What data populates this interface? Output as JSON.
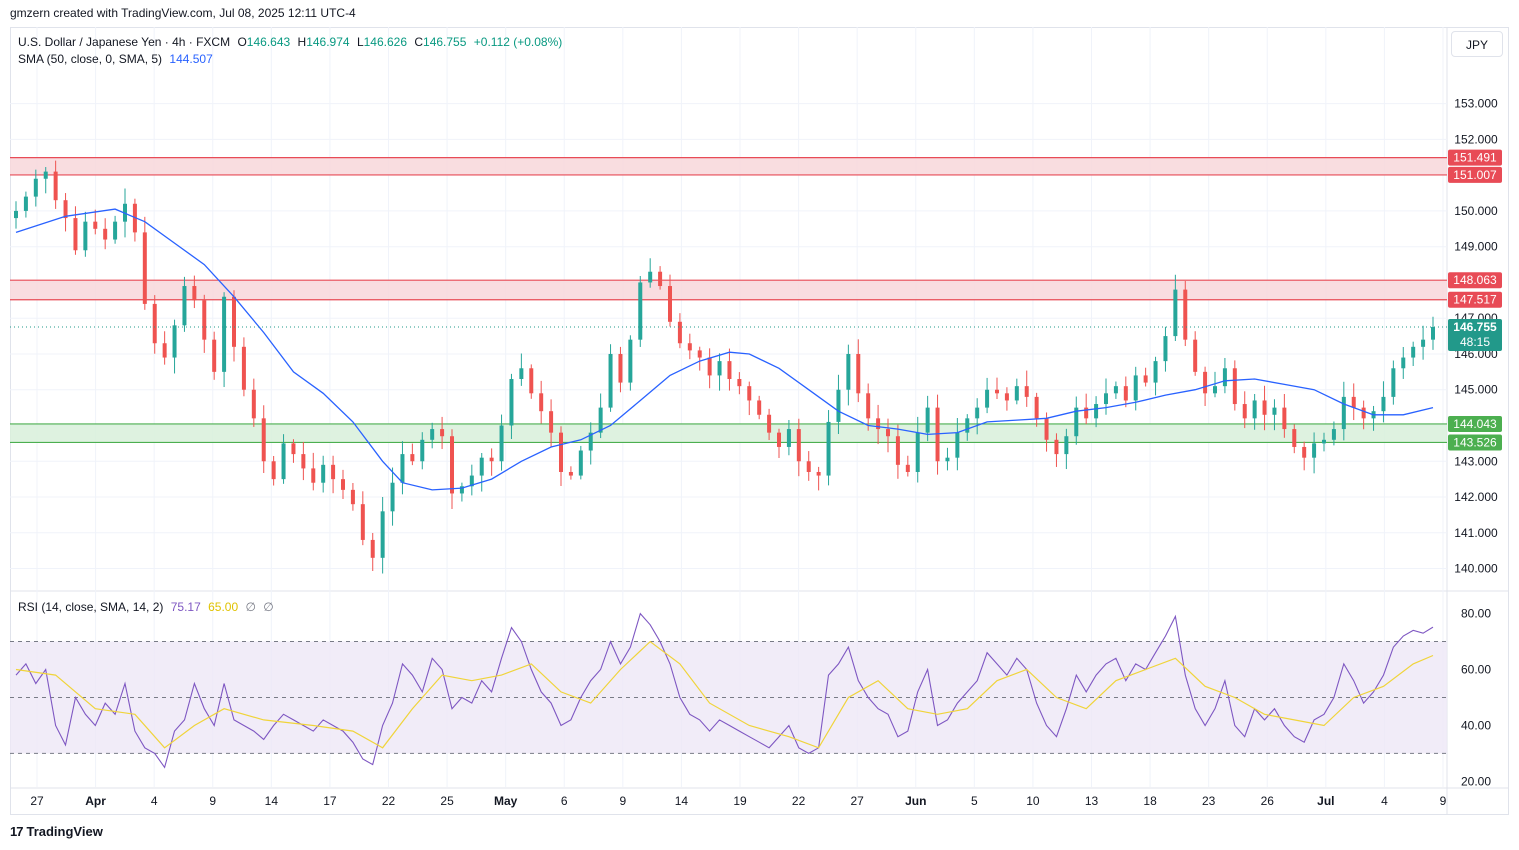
{
  "header": {
    "credit": "gmzern created with TradingView.com, Jul 08, 2025 12:11 UTC-4"
  },
  "legend": {
    "symbol": "U.S. Dollar / Japanese Yen · 4h · FXCM",
    "open_label": "O",
    "open": "146.643",
    "high_label": "H",
    "high": "146.974",
    "low_label": "L",
    "low": "146.626",
    "close_label": "C",
    "close": "146.755",
    "change": "+0.112 (+0.08%)",
    "sma_label": "SMA (50, close, 0, SMA, 5)",
    "sma_value": "144.507",
    "rsi_label": "RSI (14, close, SMA, 14, 2)",
    "rsi_value": "75.17",
    "rsi_ma_value": "65.00",
    "rsi_extra1": "∅",
    "rsi_extra2": "∅"
  },
  "currency_button": "JPY",
  "brand": {
    "logo_text": "17",
    "name": "TradingView"
  },
  "colors": {
    "up": "#26a69a",
    "down": "#ef5350",
    "sma": "#2962ff",
    "rsi": "#7e57c2",
    "rsi_ma": "#f0d43a",
    "resistance_zone": "#f8d7da",
    "resistance_line": "#e84b56",
    "support_zone": "#d8f0da",
    "support_line": "#4caf50",
    "price_tag": "#22998a"
  },
  "chart_data": {
    "type": "candlestick",
    "symbol": "USDJPY",
    "timeframe": "4h",
    "price_axis": {
      "ylim": [
        139.4,
        154.5
      ],
      "ticks": [
        "153.000",
        "152.000",
        "151.000",
        "150.000",
        "149.000",
        "148.000",
        "147.000",
        "146.000",
        "145.000",
        "144.000",
        "143.000",
        "142.000",
        "141.000",
        "140.000"
      ]
    },
    "x_axis": {
      "ticks": [
        "27",
        "Apr",
        "4",
        "9",
        "14",
        "17",
        "22",
        "25",
        "May",
        "6",
        "9",
        "14",
        "19",
        "22",
        "27",
        "Jun",
        "5",
        "10",
        "13",
        "18",
        "23",
        "26",
        "Jul",
        "4",
        "9"
      ],
      "bold_ticks": [
        "Apr",
        "May",
        "Jun",
        "Jul"
      ]
    },
    "zones": [
      {
        "kind": "resistance",
        "top": 151.491,
        "bottom": 151.007,
        "top_label": "151.491",
        "bottom_label": "151.007"
      },
      {
        "kind": "resistance",
        "top": 148.063,
        "bottom": 147.517,
        "top_label": "148.063",
        "bottom_label": "147.517"
      },
      {
        "kind": "support",
        "top": 144.043,
        "bottom": 143.526,
        "top_label": "144.043",
        "bottom_label": "143.526"
      }
    ],
    "last_price": {
      "value": 146.755,
      "label": "146.755",
      "countdown": "48:15"
    },
    "close_path": [
      [
        0,
        150.0
      ],
      [
        1,
        150.4
      ],
      [
        2,
        150.9
      ],
      [
        3,
        151.1
      ],
      [
        4,
        150.3
      ],
      [
        5,
        149.8
      ],
      [
        6,
        148.9
      ],
      [
        7,
        149.7
      ],
      [
        8,
        149.5
      ],
      [
        9,
        149.2
      ],
      [
        10,
        149.7
      ],
      [
        11,
        150.2
      ],
      [
        12,
        149.4
      ],
      [
        13,
        147.4
      ],
      [
        14,
        146.3
      ],
      [
        15,
        145.9
      ],
      [
        16,
        146.8
      ],
      [
        17,
        147.9
      ],
      [
        18,
        147.5
      ],
      [
        19,
        146.4
      ],
      [
        20,
        145.5
      ],
      [
        21,
        147.6
      ],
      [
        22,
        146.2
      ],
      [
        23,
        145.0
      ],
      [
        24,
        144.2
      ],
      [
        25,
        143.0
      ],
      [
        26,
        142.5
      ],
      [
        27,
        143.5
      ],
      [
        28,
        143.2
      ],
      [
        29,
        142.8
      ],
      [
        30,
        142.4
      ],
      [
        31,
        142.9
      ],
      [
        32,
        142.5
      ],
      [
        33,
        142.2
      ],
      [
        34,
        141.8
      ],
      [
        35,
        140.8
      ],
      [
        36,
        140.3
      ],
      [
        37,
        141.6
      ],
      [
        38,
        142.4
      ],
      [
        39,
        143.2
      ],
      [
        40,
        143.0
      ],
      [
        41,
        143.6
      ],
      [
        42,
        143.9
      ],
      [
        43,
        143.7
      ],
      [
        44,
        142.1
      ],
      [
        45,
        142.3
      ],
      [
        46,
        142.6
      ],
      [
        47,
        143.1
      ],
      [
        48,
        143.0
      ],
      [
        49,
        144.0
      ],
      [
        50,
        145.3
      ],
      [
        51,
        145.6
      ],
      [
        52,
        144.9
      ],
      [
        53,
        144.4
      ],
      [
        54,
        143.8
      ],
      [
        55,
        142.7
      ],
      [
        56,
        142.6
      ],
      [
        57,
        143.3
      ],
      [
        58,
        143.8
      ],
      [
        59,
        144.5
      ],
      [
        60,
        146.0
      ],
      [
        61,
        145.2
      ],
      [
        62,
        146.4
      ],
      [
        63,
        148.0
      ],
      [
        64,
        148.3
      ],
      [
        65,
        147.9
      ],
      [
        66,
        146.9
      ],
      [
        67,
        146.3
      ],
      [
        68,
        146.1
      ],
      [
        69,
        145.9
      ],
      [
        70,
        145.4
      ],
      [
        71,
        145.8
      ],
      [
        72,
        145.3
      ],
      [
        73,
        145.1
      ],
      [
        74,
        144.7
      ],
      [
        75,
        144.3
      ],
      [
        76,
        143.8
      ],
      [
        77,
        143.4
      ],
      [
        78,
        143.9
      ],
      [
        79,
        143.0
      ],
      [
        80,
        142.7
      ],
      [
        81,
        142.6
      ],
      [
        82,
        144.1
      ],
      [
        83,
        145.0
      ],
      [
        84,
        146.0
      ],
      [
        85,
        144.9
      ],
      [
        86,
        144.2
      ],
      [
        87,
        143.9
      ],
      [
        88,
        143.7
      ],
      [
        89,
        142.9
      ],
      [
        90,
        142.7
      ],
      [
        91,
        143.8
      ],
      [
        92,
        144.5
      ],
      [
        93,
        143.0
      ],
      [
        94,
        143.1
      ],
      [
        95,
        143.8
      ],
      [
        96,
        144.2
      ],
      [
        97,
        144.5
      ],
      [
        98,
        145.0
      ],
      [
        99,
        144.9
      ],
      [
        100,
        144.7
      ],
      [
        101,
        145.1
      ],
      [
        102,
        144.8
      ],
      [
        103,
        144.2
      ],
      [
        104,
        143.6
      ],
      [
        105,
        143.2
      ],
      [
        106,
        143.7
      ],
      [
        107,
        144.5
      ],
      [
        108,
        144.2
      ],
      [
        109,
        144.6
      ],
      [
        110,
        144.9
      ],
      [
        111,
        145.1
      ],
      [
        112,
        144.7
      ],
      [
        113,
        145.4
      ],
      [
        114,
        145.2
      ],
      [
        115,
        145.8
      ],
      [
        116,
        146.5
      ],
      [
        117,
        147.8
      ],
      [
        118,
        146.4
      ],
      [
        119,
        145.5
      ],
      [
        120,
        144.9
      ],
      [
        121,
        145.1
      ],
      [
        122,
        145.6
      ],
      [
        123,
        144.6
      ],
      [
        124,
        144.2
      ],
      [
        125,
        144.7
      ],
      [
        126,
        144.3
      ],
      [
        127,
        144.5
      ],
      [
        128,
        143.9
      ],
      [
        129,
        143.4
      ],
      [
        130,
        143.1
      ],
      [
        131,
        143.5
      ],
      [
        132,
        143.6
      ],
      [
        133,
        143.9
      ],
      [
        134,
        144.8
      ],
      [
        135,
        144.5
      ],
      [
        136,
        144.2
      ],
      [
        137,
        144.4
      ],
      [
        138,
        144.8
      ],
      [
        139,
        145.6
      ],
      [
        140,
        145.9
      ],
      [
        141,
        146.2
      ],
      [
        142,
        146.4
      ],
      [
        143,
        146.755
      ]
    ],
    "sma_path": [
      [
        0,
        149.4
      ],
      [
        5,
        149.85
      ],
      [
        10,
        150.05
      ],
      [
        13,
        149.7
      ],
      [
        16,
        149.1
      ],
      [
        19,
        148.5
      ],
      [
        22,
        147.6
      ],
      [
        25,
        146.6
      ],
      [
        28,
        145.5
      ],
      [
        31,
        144.9
      ],
      [
        34,
        144.1
      ],
      [
        37,
        143.0
      ],
      [
        39,
        142.4
      ],
      [
        42,
        142.2
      ],
      [
        45,
        142.25
      ],
      [
        48,
        142.5
      ],
      [
        51,
        143.0
      ],
      [
        54,
        143.4
      ],
      [
        57,
        143.6
      ],
      [
        60,
        144.0
      ],
      [
        63,
        144.7
      ],
      [
        66,
        145.4
      ],
      [
        69,
        145.8
      ],
      [
        72,
        146.05
      ],
      [
        74,
        146.0
      ],
      [
        77,
        145.6
      ],
      [
        80,
        145.0
      ],
      [
        83,
        144.4
      ],
      [
        86,
        144.0
      ],
      [
        89,
        143.9
      ],
      [
        92,
        143.75
      ],
      [
        95,
        143.8
      ],
      [
        98,
        144.1
      ],
      [
        101,
        144.15
      ],
      [
        104,
        144.2
      ],
      [
        107,
        144.4
      ],
      [
        110,
        144.5
      ],
      [
        113,
        144.65
      ],
      [
        116,
        144.85
      ],
      [
        119,
        145.0
      ],
      [
        122,
        145.25
      ],
      [
        125,
        145.3
      ],
      [
        128,
        145.15
      ],
      [
        131,
        145.0
      ],
      [
        134,
        144.6
      ],
      [
        137,
        144.3
      ],
      [
        140,
        144.3
      ],
      [
        143,
        144.5
      ]
    ],
    "rsi_axis": {
      "ylim": [
        18,
        87
      ],
      "ticks": [
        "80.00",
        "60.00",
        "40.00",
        "20.00"
      ],
      "overbought": 70,
      "middle": 50,
      "oversold": 30
    },
    "rsi_path": [
      [
        0,
        58
      ],
      [
        1,
        62
      ],
      [
        2,
        55
      ],
      [
        3,
        60
      ],
      [
        4,
        40
      ],
      [
        5,
        33
      ],
      [
        6,
        50
      ],
      [
        7,
        44
      ],
      [
        8,
        40
      ],
      [
        9,
        48
      ],
      [
        10,
        44
      ],
      [
        11,
        55
      ],
      [
        12,
        38
      ],
      [
        13,
        32
      ],
      [
        14,
        30
      ],
      [
        15,
        25
      ],
      [
        16,
        38
      ],
      [
        17,
        42
      ],
      [
        18,
        55
      ],
      [
        19,
        46
      ],
      [
        20,
        40
      ],
      [
        21,
        55
      ],
      [
        22,
        42
      ],
      [
        23,
        40
      ],
      [
        24,
        38
      ],
      [
        25,
        35
      ],
      [
        26,
        40
      ],
      [
        27,
        44
      ],
      [
        28,
        42
      ],
      [
        29,
        40
      ],
      [
        30,
        38
      ],
      [
        31,
        42
      ],
      [
        32,
        40
      ],
      [
        33,
        38
      ],
      [
        34,
        34
      ],
      [
        35,
        28
      ],
      [
        36,
        26
      ],
      [
        37,
        40
      ],
      [
        38,
        48
      ],
      [
        39,
        62
      ],
      [
        40,
        58
      ],
      [
        41,
        52
      ],
      [
        42,
        64
      ],
      [
        43,
        60
      ],
      [
        44,
        46
      ],
      [
        45,
        50
      ],
      [
        46,
        48
      ],
      [
        47,
        56
      ],
      [
        48,
        52
      ],
      [
        49,
        64
      ],
      [
        50,
        75
      ],
      [
        51,
        70
      ],
      [
        52,
        60
      ],
      [
        53,
        52
      ],
      [
        54,
        48
      ],
      [
        55,
        40
      ],
      [
        56,
        42
      ],
      [
        57,
        50
      ],
      [
        58,
        56
      ],
      [
        59,
        60
      ],
      [
        60,
        70
      ],
      [
        61,
        62
      ],
      [
        62,
        68
      ],
      [
        63,
        80
      ],
      [
        64,
        76
      ],
      [
        65,
        70
      ],
      [
        66,
        62
      ],
      [
        67,
        50
      ],
      [
        68,
        44
      ],
      [
        69,
        42
      ],
      [
        70,
        38
      ],
      [
        71,
        42
      ],
      [
        72,
        40
      ],
      [
        73,
        38
      ],
      [
        74,
        36
      ],
      [
        75,
        34
      ],
      [
        76,
        32
      ],
      [
        77,
        36
      ],
      [
        78,
        40
      ],
      [
        79,
        32
      ],
      [
        80,
        30
      ],
      [
        81,
        32
      ],
      [
        82,
        58
      ],
      [
        83,
        62
      ],
      [
        84,
        68
      ],
      [
        85,
        56
      ],
      [
        86,
        50
      ],
      [
        87,
        46
      ],
      [
        88,
        44
      ],
      [
        89,
        36
      ],
      [
        90,
        38
      ],
      [
        91,
        52
      ],
      [
        92,
        60
      ],
      [
        93,
        40
      ],
      [
        94,
        42
      ],
      [
        95,
        48
      ],
      [
        96,
        52
      ],
      [
        97,
        56
      ],
      [
        98,
        66
      ],
      [
        99,
        62
      ],
      [
        100,
        58
      ],
      [
        101,
        64
      ],
      [
        102,
        60
      ],
      [
        103,
        48
      ],
      [
        104,
        40
      ],
      [
        105,
        36
      ],
      [
        106,
        46
      ],
      [
        107,
        58
      ],
      [
        108,
        52
      ],
      [
        109,
        58
      ],
      [
        110,
        62
      ],
      [
        111,
        64
      ],
      [
        112,
        56
      ],
      [
        113,
        62
      ],
      [
        114,
        60
      ],
      [
        115,
        66
      ],
      [
        116,
        72
      ],
      [
        117,
        79
      ],
      [
        118,
        58
      ],
      [
        119,
        46
      ],
      [
        120,
        40
      ],
      [
        121,
        46
      ],
      [
        122,
        56
      ],
      [
        123,
        40
      ],
      [
        124,
        36
      ],
      [
        125,
        46
      ],
      [
        126,
        42
      ],
      [
        127,
        46
      ],
      [
        128,
        40
      ],
      [
        129,
        36
      ],
      [
        130,
        34
      ],
      [
        131,
        42
      ],
      [
        132,
        44
      ],
      [
        133,
        50
      ],
      [
        134,
        62
      ],
      [
        135,
        56
      ],
      [
        136,
        48
      ],
      [
        137,
        52
      ],
      [
        138,
        58
      ],
      [
        139,
        68
      ],
      [
        140,
        72
      ],
      [
        141,
        74
      ],
      [
        142,
        73
      ],
      [
        143,
        75.17
      ]
    ],
    "rsi_ma_path": [
      [
        0,
        60
      ],
      [
        4,
        58
      ],
      [
        8,
        46
      ],
      [
        12,
        44
      ],
      [
        15,
        32
      ],
      [
        18,
        40
      ],
      [
        21,
        46
      ],
      [
        25,
        42
      ],
      [
        30,
        40
      ],
      [
        34,
        38
      ],
      [
        37,
        32
      ],
      [
        40,
        46
      ],
      [
        43,
        58
      ],
      [
        46,
        56
      ],
      [
        49,
        58
      ],
      [
        52,
        62
      ],
      [
        55,
        52
      ],
      [
        58,
        48
      ],
      [
        61,
        60
      ],
      [
        64,
        70
      ],
      [
        67,
        62
      ],
      [
        70,
        48
      ],
      [
        74,
        40
      ],
      [
        78,
        36
      ],
      [
        81,
        32
      ],
      [
        84,
        50
      ],
      [
        87,
        56
      ],
      [
        90,
        46
      ],
      [
        93,
        44
      ],
      [
        96,
        46
      ],
      [
        99,
        56
      ],
      [
        102,
        60
      ],
      [
        105,
        50
      ],
      [
        108,
        46
      ],
      [
        111,
        56
      ],
      [
        114,
        60
      ],
      [
        117,
        64
      ],
      [
        120,
        54
      ],
      [
        123,
        50
      ],
      [
        126,
        44
      ],
      [
        129,
        42
      ],
      [
        132,
        40
      ],
      [
        135,
        50
      ],
      [
        138,
        54
      ],
      [
        141,
        62
      ],
      [
        143,
        65
      ]
    ]
  }
}
